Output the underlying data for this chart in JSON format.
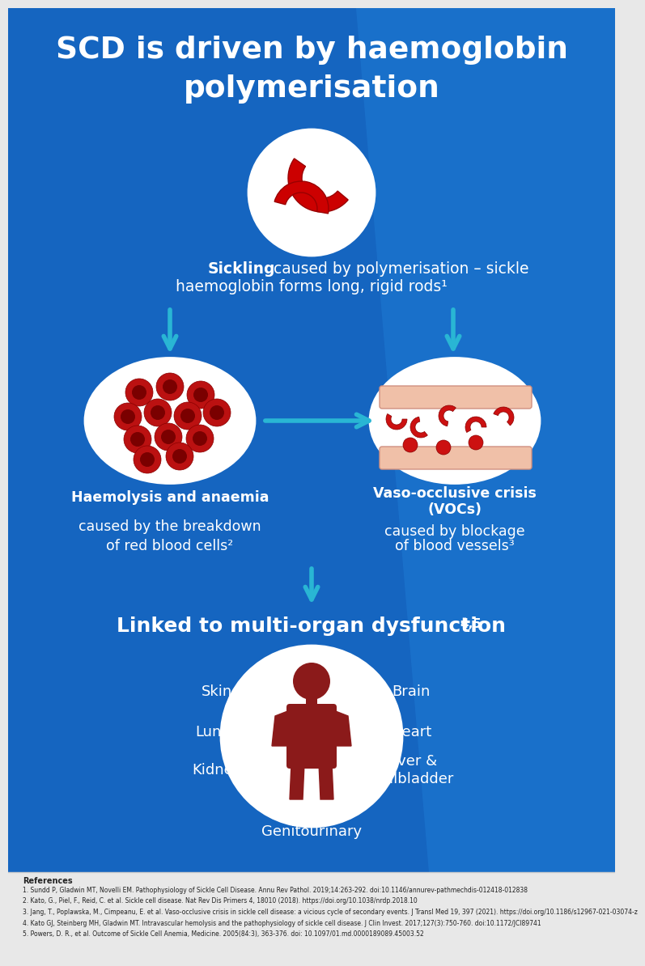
{
  "bg_color_main": "#1565c0",
  "bg_color_light": "#1e7ad4",
  "bg_color_ref": "#e8e8e8",
  "title_line1": "SCD is driven by haemoglobin",
  "title_line2": "polymerisation",
  "title_color": "#ffffff",
  "arrow_color": "#29b6d4",
  "text_color_white": "#ffffff",
  "text_color_dark": "#222222",
  "sickling_bold": "Sickling",
  "sickling_rest": " caused by polymerisation – sickle\nhaemoglobin forms long, rigid rods¹",
  "haemolysis_bold": "Haemolysis and anaemia",
  "haemolysis_rest": "caused by the breakdown\nof red blood cells²",
  "vaso_bold": "Vaso-occlusive crisis\n(VOCs)",
  "vaso_rest": "caused by blockage\nof blood vessels³",
  "multi_organ_text": "Linked to multi-organ dysfunction",
  "multi_organ_super": "4,5",
  "organ_labels_left": [
    "Skin",
    "Lungs",
    "Kidney"
  ],
  "organ_labels_right": [
    "Brain",
    "Heart",
    "Liver &\nGallbladder"
  ],
  "organ_label_bottom": "Genitourinary",
  "body_color": "#8b1a1a",
  "ref_header": "References",
  "ref_lines": [
    "1. Sundd P, Gladwin MT, Novelli EM. Pathophysiology of Sickle Cell Disease. Annu Rev Pathol. 2019;14:263-292. doi:10.1146/annurev-pathmechdis-012418-012838",
    "2. Kato, G., Piel, F., Reid, C. et al. Sickle cell disease. Nat Rev Dis Primers 4, 18010 (2018). https://doi.org/10.1038/nrdp.2018.10",
    "3. Jang, T., Poplawska, M., Cimpeanu, E. et al. Vaso-occlusive crisis in sickle cell disease: a vicious cycle of secondary events. J Transl Med 19, 397 (2021). https://doi.org/10.1186/s12967-021-03074-z",
    "4. Kato GJ, Steinberg MH, Gladwin MT. Intravascular hemolysis and the pathophysiology of sickle cell disease. J Clin Invest. 2017;127(3):750-760. doi:10.1172/JCI89741",
    "5. Powers, D. R., et al. Outcome of Sickle Cell Anemia, Medicine. 2005(84:3), 363-376. doi: 10.1097/01.md.0000189089.45003.52"
  ]
}
